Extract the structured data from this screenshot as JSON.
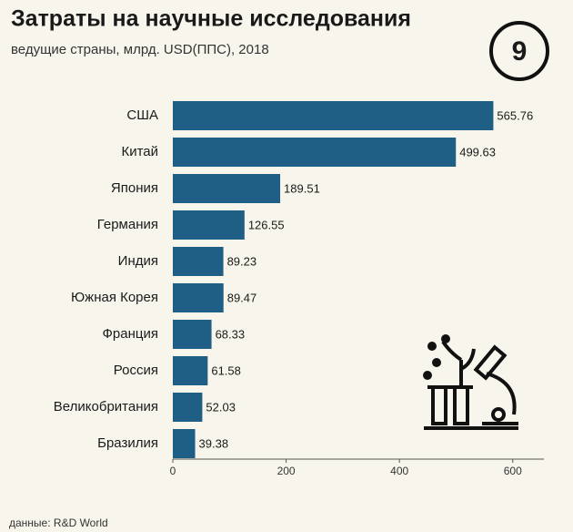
{
  "chart_data": {
    "type": "bar",
    "orientation": "horizontal",
    "title": "Затраты на научные исследования",
    "subtitle": "ведущие страны, млрд. USD(ППС), 2018",
    "badge": "9",
    "source": "данные: R&D World",
    "categories": [
      "США",
      "Китай",
      "Япония",
      "Германия",
      "Индия",
      "Южная Корея",
      "Франция",
      "Россия",
      "Великобритания",
      "Бразилия"
    ],
    "values": [
      565.76,
      499.63,
      189.51,
      126.55,
      89.23,
      89.47,
      68.33,
      61.58,
      52.03,
      39.38
    ],
    "color": "#1f5f85",
    "xlim": [
      0,
      655
    ],
    "xticks": [
      0,
      200,
      400,
      600
    ]
  }
}
